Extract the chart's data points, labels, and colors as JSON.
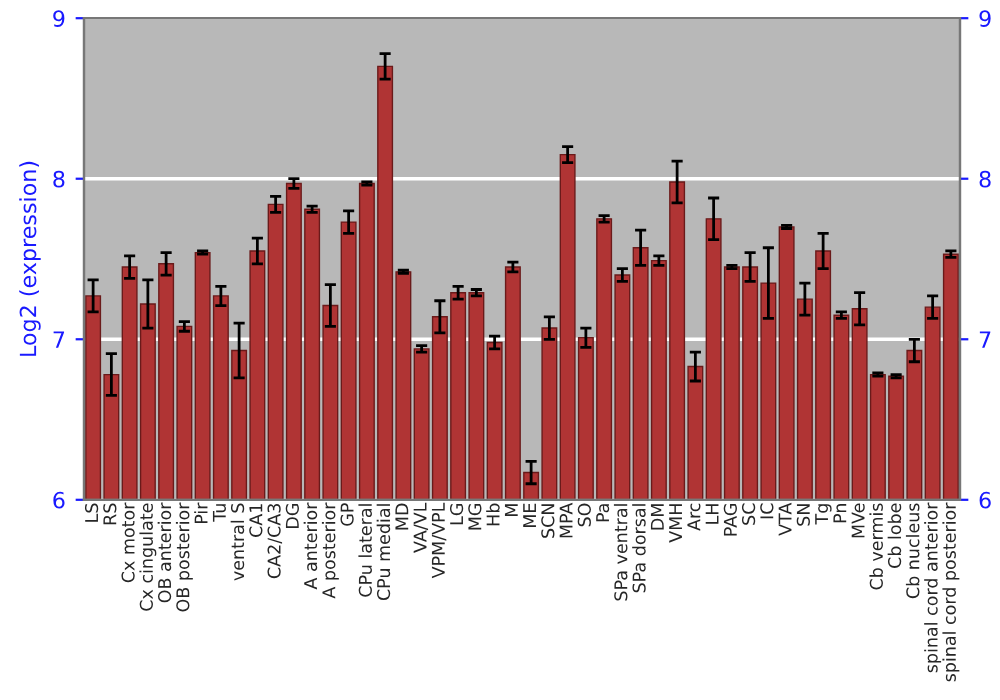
{
  "chart_data": {
    "type": "bar",
    "ylabel": "Log2 (expression)",
    "categories": [
      "LS",
      "RS",
      "Cx motor",
      "Cx cingulate",
      "OB anterior",
      "OB posterior",
      "Pir",
      "Tu",
      "ventral S",
      "CA1",
      "CA2/CA3",
      "DG",
      "A anterior",
      "A posterior",
      "GP",
      "CPu lateral",
      "CPu medial",
      "MD",
      "VA/VL",
      "VPM/VPL",
      "LG",
      "MG",
      "Hb",
      "M",
      "ME",
      "SCN",
      "MPA",
      "SO",
      "Pa",
      "SPa ventral",
      "SPa dorsal",
      "DM",
      "VMH",
      "Arc",
      "LH",
      "PAG",
      "SC",
      "IC",
      "VTA",
      "SN",
      "Tg",
      "Pn",
      "MVe",
      "Cb vermis",
      "Cb lobe",
      "Cb nucleus",
      "spinal cord anterior",
      "spinal cord posterior"
    ],
    "series": [
      {
        "color": "#b03434",
        "axis": "y",
        "values": [
          7.27,
          6.78,
          7.45,
          7.22,
          7.47,
          7.08,
          7.54,
          7.27,
          6.93,
          7.55,
          7.84,
          7.97,
          7.81,
          7.21,
          7.73,
          7.97,
          8.7,
          7.42,
          6.94,
          7.14,
          7.29,
          7.29,
          6.98,
          7.45,
          6.17,
          7.07,
          8.15,
          7.01,
          7.75,
          7.4,
          7.57,
          7.49,
          7.98,
          6.83,
          7.75,
          7.45,
          7.45,
          7.35,
          7.7,
          7.25,
          7.55,
          7.15,
          7.19,
          6.78,
          6.77,
          6.93,
          7.2,
          7.53
        ],
        "errors": [
          0.1,
          0.13,
          0.07,
          0.15,
          0.07,
          0.03,
          0.01,
          0.06,
          0.17,
          0.08,
          0.05,
          0.03,
          0.02,
          0.13,
          0.07,
          0.01,
          0.08,
          0.01,
          0.02,
          0.1,
          0.04,
          0.02,
          0.04,
          0.03,
          0.07,
          0.07,
          0.05,
          0.06,
          0.02,
          0.04,
          0.11,
          0.03,
          0.13,
          0.09,
          0.13,
          0.01,
          0.09,
          0.22,
          0.01,
          0.1,
          0.11,
          0.02,
          0.1,
          0.01,
          0.01,
          0.07,
          0.07,
          0.02
        ]
      }
    ],
    "ylim": [
      6,
      9
    ],
    "yticks": [
      6,
      7,
      8,
      9
    ],
    "y2lim": [
      6,
      9
    ],
    "y2ticks": [
      6,
      7,
      8,
      9
    ],
    "grid": "y"
  }
}
